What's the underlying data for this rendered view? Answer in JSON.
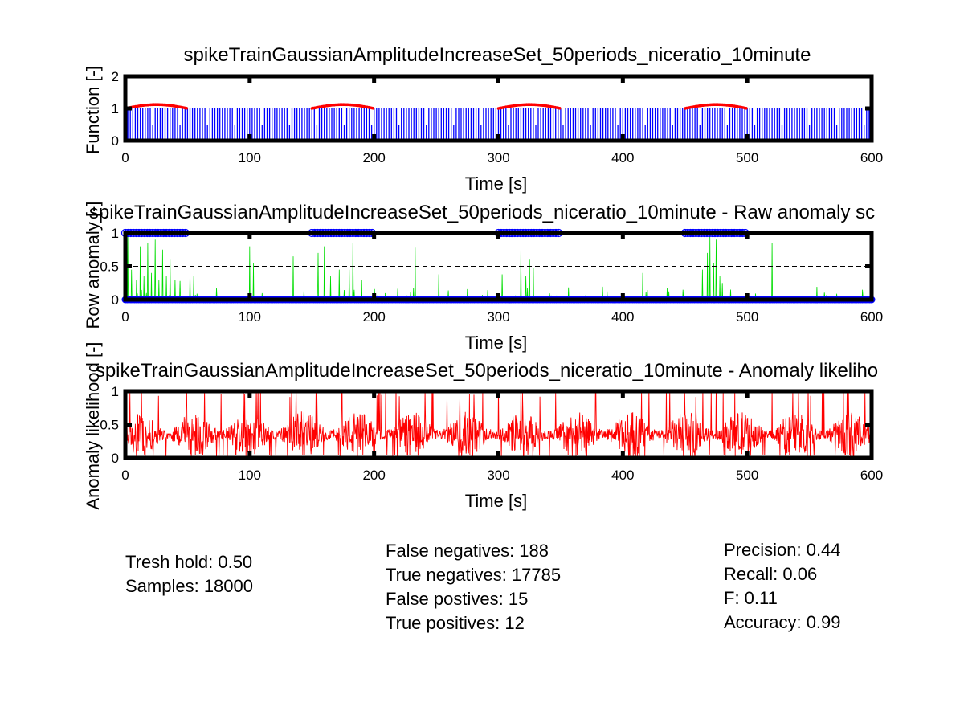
{
  "chart_data": [
    {
      "type": "line",
      "title": "spikeTrainGaussianAmplitudeIncreaseSet_50periods_niceratio_10minute",
      "xlabel": "Time [s]",
      "ylabel": "Function [-]",
      "xlim": [
        0,
        600
      ],
      "ylim": [
        0,
        2
      ],
      "xticks": [
        "0",
        "100",
        "200",
        "300",
        "400",
        "500",
        "600"
      ],
      "yticks": [
        "0",
        "1",
        "2"
      ],
      "series": [
        {
          "color": "#0000ff",
          "style": "spike-train",
          "spike_height": 1,
          "spike_period_s": 2
        },
        {
          "color": "#ff0000",
          "style": "dots",
          "segments": [
            [
              0,
              50
            ],
            [
              150,
              200
            ],
            [
              300,
              350
            ],
            [
              450,
              500
            ]
          ],
          "base": 1.0,
          "peak": 1.12
        }
      ],
      "grid": false
    },
    {
      "type": "line",
      "title": "spikeTrainGaussianAmplitudeIncreaseSet_50periods_niceratio_10minute - Raw anomaly sc",
      "xlabel": "Time [s]",
      "ylabel": "Row anomaly [-]",
      "xlim": [
        0,
        600
      ],
      "ylim": [
        0,
        1
      ],
      "xticks": [
        "0",
        "100",
        "200",
        "300",
        "400",
        "500",
        "600"
      ],
      "yticks": [
        "0",
        "0.5",
        "1"
      ],
      "threshold": 0.5,
      "series": [
        {
          "color": "#00dd00",
          "style": "line",
          "spikes": [
            [
              2,
              0.95
            ],
            [
              5,
              0.45
            ],
            [
              9,
              0.3
            ],
            [
              12,
              0.8
            ],
            [
              15,
              0.35
            ],
            [
              18,
              0.85
            ],
            [
              21,
              0.4
            ],
            [
              24,
              0.9
            ],
            [
              27,
              0.3
            ],
            [
              30,
              0.75
            ],
            [
              33,
              0.35
            ],
            [
              36,
              0.6
            ],
            [
              40,
              0.3
            ],
            [
              44,
              0.28
            ],
            [
              52,
              0.4
            ],
            [
              55,
              0.35
            ],
            [
              100,
              0.8
            ],
            [
              103,
              0.55
            ],
            [
              135,
              0.65
            ],
            [
              155,
              0.7
            ],
            [
              160,
              0.8
            ],
            [
              165,
              0.35
            ],
            [
              172,
              0.45
            ],
            [
              180,
              0.45
            ],
            [
              183,
              0.85
            ],
            [
              190,
              0.3
            ],
            [
              233,
              0.78
            ],
            [
              252,
              0.38
            ],
            [
              303,
              0.38
            ],
            [
              318,
              0.75
            ],
            [
              322,
              0.35
            ],
            [
              325,
              0.6
            ],
            [
              328,
              0.48
            ],
            [
              416,
              0.4
            ],
            [
              464,
              0.45
            ],
            [
              468,
              0.7
            ],
            [
              470,
              0.95
            ],
            [
              473,
              0.55
            ],
            [
              475,
              0.9
            ],
            [
              478,
              0.35
            ],
            [
              480,
              0.25
            ],
            [
              520,
              0.85
            ]
          ]
        },
        {
          "color": "#0000ff",
          "style": "circles-top",
          "segments": [
            [
              0,
              50
            ],
            [
              150,
              200
            ],
            [
              300,
              350
            ],
            [
              450,
              500
            ]
          ],
          "value": 1
        },
        {
          "color": "#0000ff",
          "style": "circles-bottom",
          "range": [
            0,
            600
          ],
          "value": 0
        }
      ],
      "grid": false
    },
    {
      "type": "line",
      "title": "spikeTrainGaussianAmplitudeIncreaseSet_50periods_niceratio_10minute - Anomaly likeliho",
      "xlabel": "Time [s]",
      "ylabel": "Anomaly likelihood [-]",
      "xlim": [
        0,
        600
      ],
      "ylim": [
        0,
        1
      ],
      "xticks": [
        "0",
        "100",
        "200",
        "300",
        "400",
        "500",
        "600"
      ],
      "yticks": [
        "0",
        "0.5",
        "1"
      ],
      "series": [
        {
          "color": "#ff0000",
          "style": "noise",
          "mean": 0.35,
          "spread": 0.35
        }
      ],
      "grid": false
    }
  ],
  "stats": {
    "col1": [
      "Tresh hold: 0.50",
      "Samples: 18000"
    ],
    "col2": [
      "False negatives: 188",
      "True negatives: 17785",
      "False postives: 15",
      "True positives: 12"
    ],
    "col3": [
      "Precision: 0.44",
      "Recall: 0.06",
      "F: 0.11",
      "Accuracy: 0.99"
    ]
  }
}
